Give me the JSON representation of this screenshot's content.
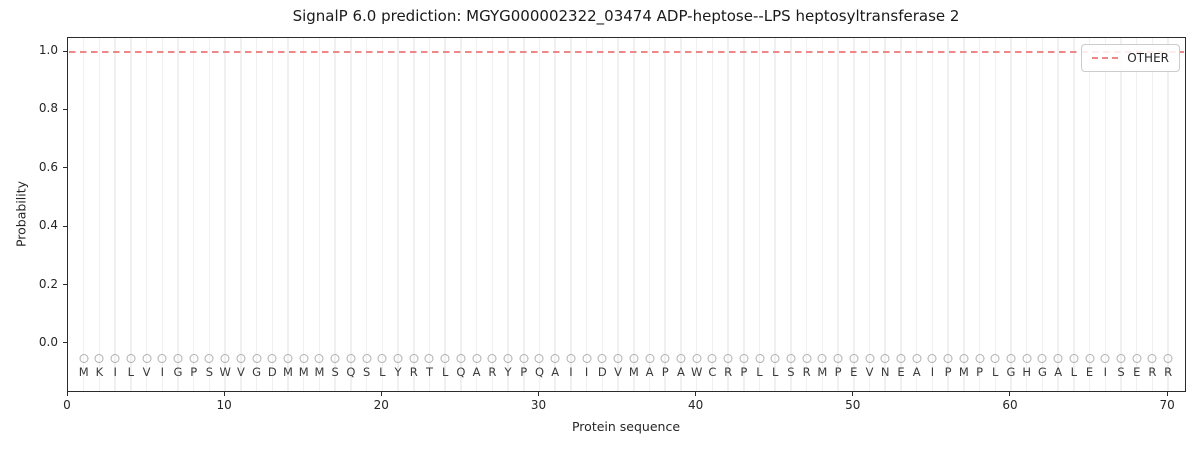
{
  "title": "SignalP 6.0 prediction: MGYG000002322_03474 ADP-heptose--LPS heptosyltransferase 2",
  "legend": {
    "entries": [
      {
        "label": "OTHER",
        "style": "dashed",
        "color": "#ee8888"
      }
    ],
    "position": "upper right"
  },
  "colors": {
    "other_line": "#ee8888",
    "grid": "#f0f0f0",
    "marker_stroke": "#b0b0b0",
    "spine": "#2b2b2b"
  },
  "chart_data": {
    "type": "line",
    "title": "SignalP 6.0 prediction: MGYG000002322_03474 ADP-heptose--LPS heptosyltransferase 2",
    "xlabel": "Protein sequence",
    "ylabel": "Probability",
    "x_ticks": [
      0,
      10,
      20,
      30,
      40,
      50,
      60,
      70
    ],
    "y_tick_labels": [
      "0.0",
      "0.2",
      "0.4",
      "0.6",
      "0.8",
      "1.0"
    ],
    "y_ticks": [
      0.0,
      0.2,
      0.4,
      0.6,
      0.8,
      1.0
    ],
    "xlim": [
      0,
      71.2
    ],
    "ylim": [
      -0.168,
      1.048
    ],
    "grid": "vertical gridline at every residue position, no horizontal grid",
    "legend_position": "upper right",
    "sequence": "MKILVIGPSWVGDMMMSQSLYRTLQARYPQAIIDVMAPAWCRPLLSRMPEVNEAIPMPLGHGALEISERR",
    "residue_markers": {
      "symbol": "open-circle",
      "color": "#b0b0b0",
      "y_value": -0.05
    },
    "series": [
      {
        "name": "OTHER",
        "style": "dashed",
        "color": "#ee8888",
        "x": [
          1,
          2,
          3,
          4,
          5,
          6,
          7,
          8,
          9,
          10,
          11,
          12,
          13,
          14,
          15,
          16,
          17,
          18,
          19,
          20,
          21,
          22,
          23,
          24,
          25,
          26,
          27,
          28,
          29,
          30,
          31,
          32,
          33,
          34,
          35,
          36,
          37,
          38,
          39,
          40,
          41,
          42,
          43,
          44,
          45,
          46,
          47,
          48,
          49,
          50,
          51,
          52,
          53,
          54,
          55,
          56,
          57,
          58,
          59,
          60,
          61,
          62,
          63,
          64,
          65,
          66,
          67,
          68,
          69,
          70
        ],
        "y": [
          1.0,
          1.0,
          1.0,
          1.0,
          1.0,
          1.0,
          1.0,
          1.0,
          1.0,
          1.0,
          1.0,
          1.0,
          1.0,
          1.0,
          1.0,
          1.0,
          1.0,
          1.0,
          1.0,
          1.0,
          1.0,
          1.0,
          1.0,
          1.0,
          1.0,
          1.0,
          1.0,
          1.0,
          1.0,
          1.0,
          1.0,
          1.0,
          1.0,
          1.0,
          1.0,
          1.0,
          1.0,
          1.0,
          1.0,
          1.0,
          1.0,
          1.0,
          1.0,
          1.0,
          1.0,
          1.0,
          1.0,
          1.0,
          1.0,
          1.0,
          1.0,
          1.0,
          1.0,
          1.0,
          1.0,
          1.0,
          1.0,
          1.0,
          1.0,
          1.0,
          1.0,
          1.0,
          1.0,
          1.0,
          1.0,
          1.0,
          1.0,
          1.0,
          1.0,
          1.0
        ]
      }
    ]
  }
}
